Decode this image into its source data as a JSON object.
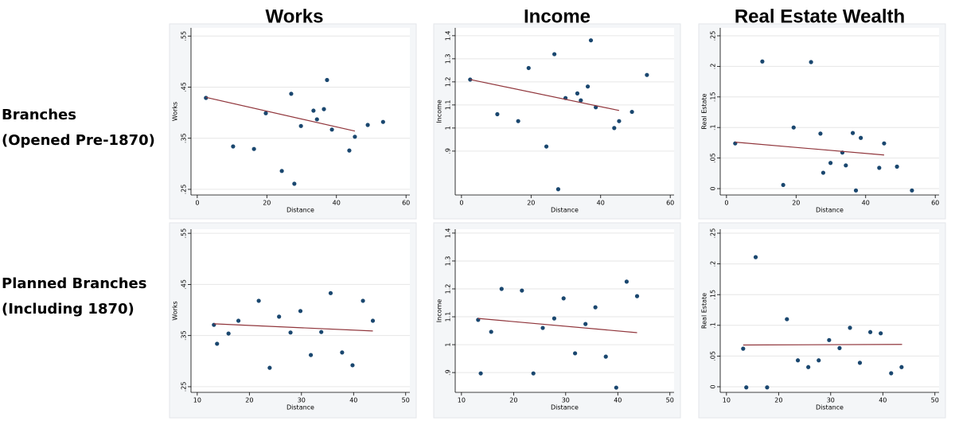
{
  "column_titles": [
    "Works",
    "Income",
    "Real Estate Wealth"
  ],
  "row_labels": [
    [
      "Branches",
      "(Opened Pre-1870)"
    ],
    [
      "Planned Branches",
      "(Including 1870)"
    ]
  ],
  "chart_data": [
    {
      "type": "scatter",
      "x_label": "Distance",
      "y_label": "Works",
      "color": "#1a476f",
      "fit_color": "#90353b",
      "x": [
        2.5,
        10.3,
        16.3,
        19.7,
        24.3,
        27.0,
        27.9,
        29.8,
        33.4,
        34.4,
        36.4,
        37.3,
        38.7,
        43.7,
        45.3,
        49.0,
        53.4
      ],
      "y": [
        0.429,
        0.334,
        0.329,
        0.399,
        0.286,
        0.437,
        0.261,
        0.374,
        0.404,
        0.387,
        0.407,
        0.464,
        0.367,
        0.326,
        0.353,
        0.376,
        0.382
      ],
      "fit_x": [
        2.5,
        45.3
      ],
      "fit_y": [
        0.43,
        0.364
      ],
      "xlim": [
        -1.8,
        61.1
      ],
      "ylim": [
        0.239,
        0.566
      ],
      "xticks": [
        0,
        20,
        40,
        60
      ],
      "yticks": [
        {
          "value": 0.25,
          "label": ".25"
        },
        {
          "value": 0.35,
          "label": ".35"
        },
        {
          "value": 0.45,
          "label": ".45"
        },
        {
          "value": 0.55,
          "label": ".55"
        }
      ]
    },
    {
      "type": "scatter",
      "x_label": "Distance",
      "y_label": "Income",
      "color": "#1a476f",
      "fit_color": "#90353b",
      "x": [
        2.5,
        10.3,
        16.3,
        19.3,
        24.4,
        26.7,
        27.8,
        29.9,
        33.3,
        34.3,
        36.3,
        37.2,
        38.6,
        43.9,
        45.3,
        49.0,
        53.3
      ],
      "y": [
        1.21,
        1.06,
        1.03,
        1.26,
        0.92,
        1.32,
        0.735,
        1.13,
        1.15,
        1.12,
        1.18,
        1.38,
        1.09,
        1.0,
        1.03,
        1.07,
        1.23
      ],
      "fit_x": [
        2.5,
        45.3
      ],
      "fit_y": [
        1.21,
        1.076
      ],
      "xlim": [
        -1.8,
        61.1
      ],
      "ylim": [
        0.71,
        1.434
      ],
      "xticks": [
        0,
        20,
        40,
        60
      ],
      "yticks": [
        {
          "value": 0.9,
          "label": ".9"
        },
        1,
        1.1,
        1.2,
        1.3,
        1.4
      ]
    },
    {
      "type": "scatter",
      "x_label": "Distance",
      "y_label": "Real Estate",
      "color": "#1a476f",
      "fit_color": "#90353b",
      "x": [
        2.5,
        10.3,
        16.3,
        19.3,
        24.3,
        27.0,
        27.8,
        29.9,
        33.3,
        34.3,
        36.3,
        37.2,
        38.6,
        43.9,
        45.3,
        49.0,
        53.3
      ],
      "y": [
        0.074,
        0.208,
        0.006,
        0.1,
        0.207,
        0.09,
        0.026,
        0.042,
        0.059,
        0.038,
        0.091,
        -0.003,
        0.083,
        0.034,
        0.074,
        0.036,
        -0.003
      ],
      "fit_x": [
        2.5,
        45.3
      ],
      "fit_y": [
        0.076,
        0.055
      ],
      "xlim": [
        -1.8,
        61.1
      ],
      "ylim": [
        -0.0104,
        0.263
      ],
      "xticks": [
        0,
        20,
        40,
        60
      ],
      "yticks": [
        0,
        {
          "value": 0.05,
          "label": ".05"
        },
        {
          "value": 0.1,
          "label": ".1"
        },
        {
          "value": 0.15,
          "label": ".15"
        },
        {
          "value": 0.2,
          "label": ".2"
        },
        {
          "value": 0.25,
          "label": ".25"
        }
      ]
    },
    {
      "type": "scatter",
      "x_label": "Distance",
      "y_label": "Works",
      "color": "#1a476f",
      "fit_color": "#90353b",
      "x": [
        13.2,
        13.8,
        16.0,
        17.9,
        21.8,
        23.9,
        25.7,
        27.9,
        29.8,
        31.8,
        33.8,
        35.6,
        37.8,
        39.8,
        41.8,
        43.7
      ],
      "y": [
        0.371,
        0.334,
        0.354,
        0.379,
        0.418,
        0.287,
        0.387,
        0.356,
        0.398,
        0.312,
        0.357,
        0.433,
        0.317,
        0.292,
        0.418,
        0.379
      ],
      "fit_x": [
        13.2,
        43.7
      ],
      "fit_y": [
        0.373,
        0.359
      ],
      "xlim": [
        8.8,
        50.8
      ],
      "ylim": [
        0.239,
        0.558
      ],
      "xticks": [
        10,
        20,
        30,
        40,
        50
      ],
      "yticks": [
        {
          "value": 0.25,
          "label": ".25"
        },
        {
          "value": 0.35,
          "label": ".35"
        },
        {
          "value": 0.45,
          "label": ".45"
        },
        {
          "value": 0.55,
          "label": ".55"
        }
      ]
    },
    {
      "type": "scatter",
      "x_label": "Distance",
      "y_label": "Income",
      "color": "#1a476f",
      "fit_color": "#90353b",
      "x": [
        13.2,
        13.7,
        15.7,
        17.7,
        21.6,
        23.8,
        25.6,
        27.8,
        29.6,
        31.8,
        33.8,
        35.7,
        37.7,
        39.7,
        41.7,
        43.7
      ],
      "y": [
        1.089,
        0.897,
        1.046,
        1.2,
        1.194,
        0.897,
        1.06,
        1.094,
        1.166,
        0.969,
        1.074,
        1.134,
        0.957,
        0.846,
        1.226,
        1.174
      ],
      "fit_x": [
        13.2,
        43.7
      ],
      "fit_y": [
        1.094,
        1.043
      ],
      "xlim": [
        8.8,
        50.8
      ],
      "ylim": [
        0.829,
        1.414
      ],
      "xticks": [
        10,
        20,
        30,
        40,
        50
      ],
      "yticks": [
        {
          "value": 0.9,
          "label": ".9"
        },
        1,
        1.1,
        1.2,
        1.3,
        1.4
      ]
    },
    {
      "type": "scatter",
      "x_label": "Distance",
      "y_label": "Real Estate",
      "color": "#1a476f",
      "fit_color": "#90353b",
      "x": [
        13.2,
        13.8,
        15.6,
        17.8,
        21.6,
        23.7,
        25.7,
        27.7,
        29.7,
        31.7,
        33.7,
        35.6,
        37.6,
        39.6,
        41.6,
        43.6
      ],
      "y": [
        0.062,
        -0.001,
        0.211,
        -0.001,
        0.11,
        0.043,
        0.032,
        0.043,
        0.076,
        0.063,
        0.096,
        0.039,
        0.089,
        0.087,
        0.022,
        0.032
      ],
      "fit_x": [
        13.2,
        43.7
      ],
      "fit_y": [
        0.068,
        0.069
      ],
      "xlim": [
        8.8,
        50.8
      ],
      "ylim": [
        -0.0091,
        0.2565
      ],
      "xticks": [
        10,
        20,
        30,
        40,
        50
      ],
      "yticks": [
        0,
        {
          "value": 0.05,
          "label": ".05"
        },
        {
          "value": 0.1,
          "label": ".1"
        },
        {
          "value": 0.15,
          "label": ".15"
        },
        {
          "value": 0.2,
          "label": ".2"
        },
        {
          "value": 0.25,
          "label": ".25"
        }
      ]
    }
  ]
}
